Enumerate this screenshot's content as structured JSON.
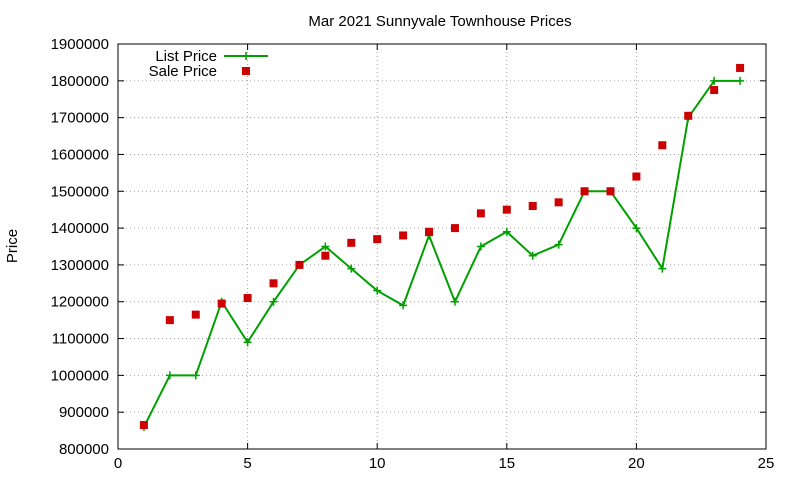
{
  "chart_data": {
    "type": "line",
    "title": "Mar 2021 Sunnyvale Townhouse Prices",
    "xlabel": "",
    "ylabel": "Price",
    "xlim": [
      0,
      25
    ],
    "ylim": [
      800000,
      1900000
    ],
    "xticks": [
      0,
      5,
      10,
      15,
      20,
      25
    ],
    "yticks": [
      800000,
      900000,
      1000000,
      1100000,
      1200000,
      1300000,
      1400000,
      1500000,
      1600000,
      1700000,
      1800000,
      1900000
    ],
    "grid": true,
    "legend_position": "top-left",
    "series": [
      {
        "name": "List Price",
        "style": "line-with-plus-markers",
        "color": "#00a000",
        "points": [
          [
            1,
            860000
          ],
          [
            2,
            1000000
          ],
          [
            3,
            1000000
          ],
          [
            4,
            1200000
          ],
          [
            5,
            1090000
          ],
          [
            6,
            1200000
          ],
          [
            7,
            1300000
          ],
          [
            8,
            1350000
          ],
          [
            9,
            1290000
          ],
          [
            10,
            1230000
          ],
          [
            11,
            1190000
          ],
          [
            12,
            1380000
          ],
          [
            13,
            1200000
          ],
          [
            14,
            1350000
          ],
          [
            15,
            1390000
          ],
          [
            16,
            1325000
          ],
          [
            17,
            1355000
          ],
          [
            18,
            1500000
          ],
          [
            19,
            1500000
          ],
          [
            20,
            1400000
          ],
          [
            21,
            1290000
          ],
          [
            22,
            1700000
          ],
          [
            23,
            1800000
          ],
          [
            24,
            1800000
          ]
        ]
      },
      {
        "name": "Sale Price",
        "style": "square-markers",
        "color": "#cc0000",
        "points": [
          [
            1,
            865000
          ],
          [
            2,
            1150000
          ],
          [
            3,
            1165000
          ],
          [
            4,
            1195000
          ],
          [
            5,
            1210000
          ],
          [
            6,
            1250000
          ],
          [
            7,
            1300000
          ],
          [
            8,
            1325000
          ],
          [
            9,
            1360000
          ],
          [
            10,
            1370000
          ],
          [
            11,
            1380000
          ],
          [
            12,
            1390000
          ],
          [
            13,
            1400000
          ],
          [
            14,
            1440000
          ],
          [
            15,
            1450000
          ],
          [
            16,
            1460000
          ],
          [
            17,
            1470000
          ],
          [
            18,
            1500000
          ],
          [
            19,
            1500000
          ],
          [
            20,
            1540000
          ],
          [
            21,
            1625000
          ],
          [
            22,
            1705000
          ],
          [
            23,
            1775000
          ],
          [
            24,
            1835000
          ]
        ]
      }
    ]
  }
}
